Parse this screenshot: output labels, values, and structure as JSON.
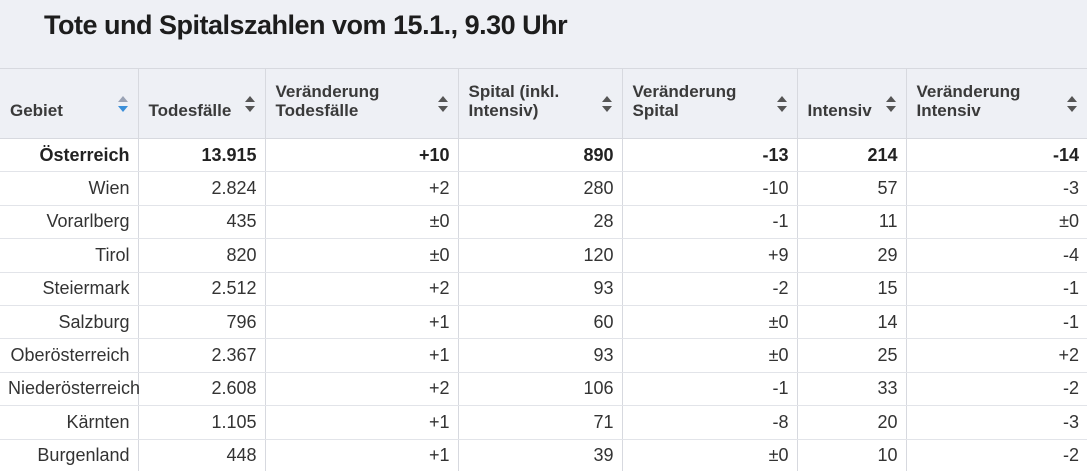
{
  "title": "Tote und Spitalszahlen vom 15.1., 9.30 Uhr",
  "columns": [
    {
      "label": "Gebiet",
      "sort": "descending"
    },
    {
      "label": "Todesfälle",
      "sort": "none"
    },
    {
      "label": "Veränderung Todesfälle",
      "sort": "none"
    },
    {
      "label": "Spital (inkl. Intensiv)",
      "sort": "none"
    },
    {
      "label": "Veränderung Spital",
      "sort": "none"
    },
    {
      "label": "Intensiv",
      "sort": "none"
    },
    {
      "label": "Veränderung Intensiv",
      "sort": "none"
    }
  ],
  "rows": [
    [
      "Österreich",
      "13.915",
      "+10",
      "890",
      "-13",
      "214",
      "-14"
    ],
    [
      "Wien",
      "2.824",
      "+2",
      "280",
      "-10",
      "57",
      "-3"
    ],
    [
      "Vorarlberg",
      "435",
      "±0",
      "28",
      "-1",
      "11",
      "±0"
    ],
    [
      "Tirol",
      "820",
      "±0",
      "120",
      "+9",
      "29",
      "-4"
    ],
    [
      "Steiermark",
      "2.512",
      "+2",
      "93",
      "-2",
      "15",
      "-1"
    ],
    [
      "Salzburg",
      "796",
      "+1",
      "60",
      "±0",
      "14",
      "-1"
    ],
    [
      "Oberösterreich",
      "2.367",
      "+1",
      "93",
      "±0",
      "25",
      "+2"
    ],
    [
      "Niederösterreich",
      "2.608",
      "+2",
      "106",
      "-1",
      "33",
      "-2"
    ],
    [
      "Kärnten",
      "1.105",
      "+1",
      "71",
      "-8",
      "20",
      "-3"
    ],
    [
      "Burgenland",
      "448",
      "+1",
      "39",
      "±0",
      "10",
      "-2"
    ]
  ],
  "colors": {
    "header_background": "#eef0f5",
    "active_sort_arrow": "#3b8fd9"
  },
  "icons": {
    "sort": "sort-arrows-icon"
  }
}
